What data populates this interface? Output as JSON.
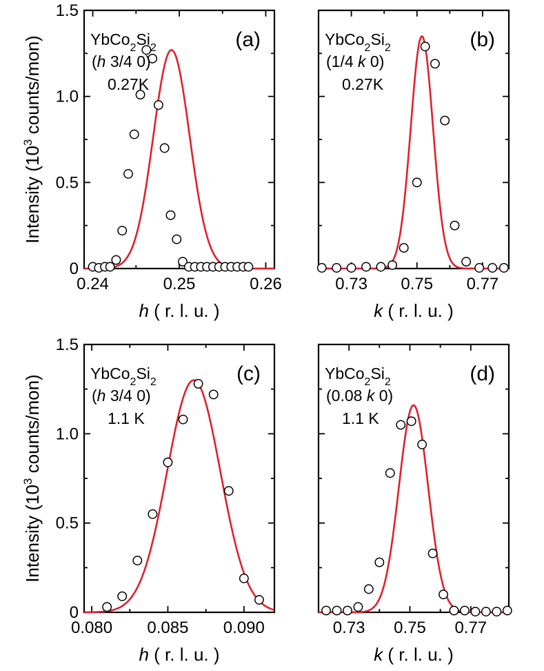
{
  "chart_data": [
    {
      "type": "scatter",
      "panel": "(a)",
      "title": "",
      "annotation": {
        "material": "YbCo2Si2",
        "scan": "(h 3/4 0)",
        "temperature": "0.27K"
      },
      "xvar": "h",
      "xunit": "( r. l. u. )",
      "ylabel": "Intensity (10^3 counts/mon)",
      "xlim": [
        0.239,
        0.261
      ],
      "ylim": [
        0,
        1.5
      ],
      "xticks": [
        0.24,
        0.25,
        0.26
      ],
      "xticklabels": [
        "0.24",
        "0.25",
        "0.26"
      ],
      "yticks": [
        0,
        0.5,
        1.0,
        1.5
      ],
      "yticklabels": [
        "0",
        "0.5",
        "1.0",
        "1.5"
      ],
      "points": {
        "x": [
          0.24,
          0.2407,
          0.2414,
          0.242,
          0.2427,
          0.2434,
          0.2441,
          0.2448,
          0.2455,
          0.2462,
          0.2469,
          0.2476,
          0.2483,
          0.249,
          0.2497,
          0.2504,
          0.2511,
          0.2518,
          0.2525,
          0.2532,
          0.2539,
          0.2546,
          0.2553,
          0.256,
          0.2567,
          0.2574,
          0.258
        ],
        "y": [
          0.01,
          0.0,
          0.01,
          0.01,
          0.05,
          0.22,
          0.55,
          0.78,
          1.01,
          1.27,
          1.22,
          0.95,
          0.7,
          0.31,
          0.17,
          0.04,
          0.01,
          0.01,
          0.01,
          0.01,
          0.01,
          0.01,
          0.01,
          0.01,
          0.01,
          0.01,
          0.01
        ]
      },
      "fit": {
        "amplitude": 1.27,
        "center": 0.2491,
        "sigma": 0.0021
      }
    },
    {
      "type": "scatter",
      "panel": "(b)",
      "title": "",
      "annotation": {
        "material": "YbCo2Si2",
        "scan": "(1/4 k 0)",
        "temperature": "0.27K"
      },
      "xvar": "k",
      "xunit": "( r. l. u. )",
      "ylabel": "Intensity (10^3 counts/mon)",
      "xlim": [
        0.72,
        0.778
      ],
      "ylim": [
        0,
        1.5
      ],
      "xticks": [
        0.73,
        0.75,
        0.77
      ],
      "xticklabels": [
        "0.73",
        "0.75",
        "0.77"
      ],
      "yticks": [
        0,
        0.5,
        1.0,
        1.5
      ],
      "yticklabels": [
        "0",
        "0.5",
        "1.0",
        "1.5"
      ],
      "points": {
        "x": [
          0.721,
          0.7255,
          0.73,
          0.7345,
          0.739,
          0.7425,
          0.746,
          0.75,
          0.7525,
          0.7555,
          0.7585,
          0.7615,
          0.765,
          0.769,
          0.773,
          0.7765
        ],
        "y": [
          0.0,
          0.0,
          0.0,
          0.01,
          0.01,
          0.02,
          0.12,
          0.5,
          1.29,
          1.19,
          0.86,
          0.25,
          0.04,
          0.0,
          0.0,
          0.0
        ]
      },
      "fit": {
        "amplitude": 1.35,
        "center": 0.7515,
        "sigma": 0.0034
      }
    },
    {
      "type": "scatter",
      "panel": "(c)",
      "title": "",
      "annotation": {
        "material": "YbCo2Si2",
        "scan": "(h 3/4 0)",
        "temperature": "1.1 K"
      },
      "xvar": "h",
      "xunit": "( r. l. u. )",
      "ylabel": "Intensity (10^3 counts/mon)",
      "xlim": [
        0.0795,
        0.092
      ],
      "ylim": [
        0,
        1.5
      ],
      "xticks": [
        0.08,
        0.085,
        0.09
      ],
      "xticklabels": [
        "0.080",
        "0.085",
        "0.090"
      ],
      "yticks": [
        0,
        0.5,
        1.0,
        1.5
      ],
      "yticklabels": [
        "0",
        "0.5",
        "1.0",
        "1.5"
      ],
      "points": {
        "x": [
          0.081,
          0.082,
          0.083,
          0.084,
          0.085,
          0.086,
          0.087,
          0.088,
          0.089,
          0.09,
          0.091
        ],
        "y": [
          0.03,
          0.09,
          0.29,
          0.55,
          0.84,
          1.08,
          1.28,
          1.22,
          0.68,
          0.19,
          0.07
        ]
      },
      "fit": {
        "amplitude": 1.3,
        "center": 0.0867,
        "sigma": 0.00175
      }
    },
    {
      "type": "scatter",
      "panel": "(d)",
      "title": "",
      "annotation": {
        "material": "YbCo2Si2",
        "scan": "(0.08 k 0)",
        "temperature": "1.1 K"
      },
      "xvar": "k",
      "xunit": "( r. l. u. )",
      "ylabel": "Intensity (10^3 counts/mon)",
      "xlim": [
        0.72,
        0.7825
      ],
      "ylim": [
        0,
        1.5
      ],
      "xticks": [
        0.73,
        0.75,
        0.77
      ],
      "xticklabels": [
        "0.73",
        "0.75",
        "0.77"
      ],
      "yticks": [
        0,
        0.5,
        1.0,
        1.5
      ],
      "yticklabels": [
        "0",
        "0.5",
        "1.0",
        "1.5"
      ],
      "points": {
        "x": [
          0.7225,
          0.726,
          0.7295,
          0.733,
          0.7365,
          0.74,
          0.7435,
          0.747,
          0.7505,
          0.754,
          0.7575,
          0.761,
          0.7645,
          0.768,
          0.7715,
          0.775,
          0.7785,
          0.782
        ],
        "y": [
          0.01,
          0.01,
          0.01,
          0.03,
          0.13,
          0.28,
          0.78,
          1.05,
          1.07,
          0.94,
          0.33,
          0.1,
          0.01,
          0.01,
          0.0,
          0.0,
          0.0,
          0.01
        ]
      },
      "fit": {
        "amplitude": 1.16,
        "center": 0.7512,
        "sigma": 0.0048
      }
    }
  ],
  "colors": {
    "fit": "#e0202a",
    "marker_fill": "#ffffff",
    "marker_edge": "#000000"
  }
}
